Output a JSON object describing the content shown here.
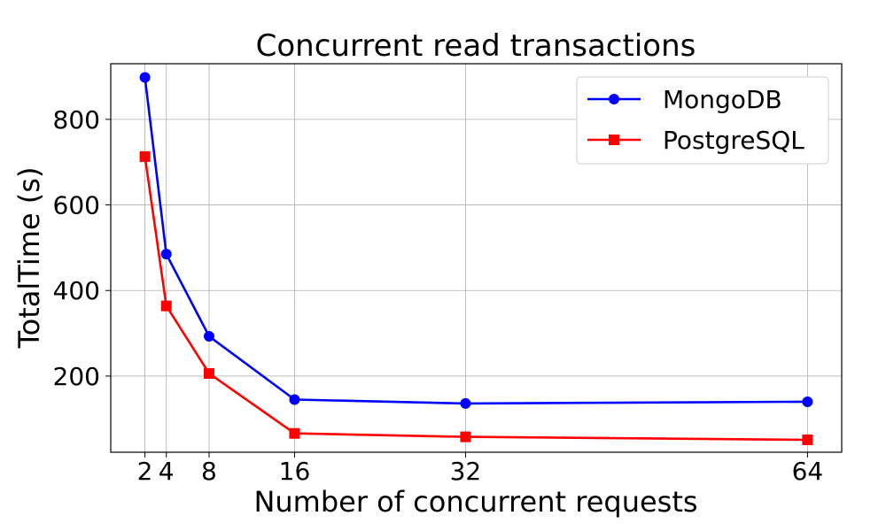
{
  "chart_data": {
    "type": "line",
    "title": "Concurrent read transactions",
    "xlabel": "Number of concurrent requests",
    "ylabel": "TotalTime (s)",
    "x": [
      2,
      4,
      8,
      16,
      32,
      64
    ],
    "x_ticks": [
      "2",
      "4",
      "8",
      "16",
      "32",
      "64"
    ],
    "y_ticks": [
      "200",
      "400",
      "600",
      "800"
    ],
    "xlim": [
      -1.2,
      67.2
    ],
    "ylim": [
      22,
      930
    ],
    "grid": true,
    "legend_position": "top-right",
    "series": [
      {
        "name": "MongoDB",
        "color": "#0000ff",
        "marker": "circle",
        "values": [
          898,
          485,
          293,
          145,
          136,
          140
        ]
      },
      {
        "name": "PostgreSQL",
        "color": "#ff0000",
        "marker": "square",
        "values": [
          713,
          364,
          206,
          66,
          58,
          51
        ]
      }
    ]
  }
}
